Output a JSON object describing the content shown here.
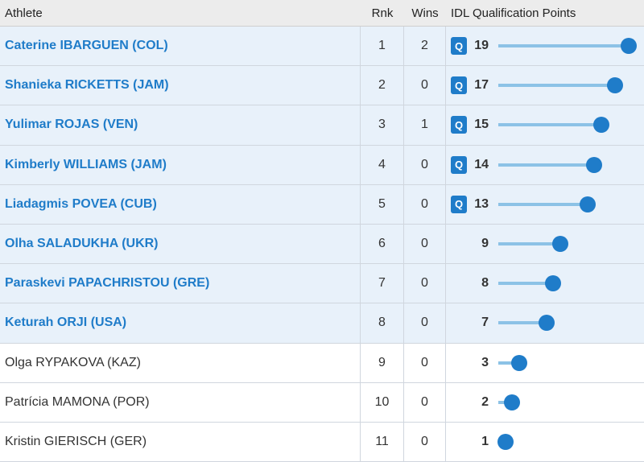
{
  "headers": {
    "athlete": "Athlete",
    "rnk": "Rnk",
    "wins": "Wins",
    "points": "IDL Qualification Points"
  },
  "qualified_badge": "Q",
  "max_points": 19,
  "rows": [
    {
      "athlete": "Caterine IBARGUEN (COL)",
      "rnk": "1",
      "wins": "2",
      "points": "19",
      "qualified": true
    },
    {
      "athlete": "Shanieka RICKETTS (JAM)",
      "rnk": "2",
      "wins": "0",
      "points": "17",
      "qualified": true
    },
    {
      "athlete": "Yulimar ROJAS (VEN)",
      "rnk": "3",
      "wins": "1",
      "points": "15",
      "qualified": true
    },
    {
      "athlete": "Kimberly WILLIAMS (JAM)",
      "rnk": "4",
      "wins": "0",
      "points": "14",
      "qualified": true
    },
    {
      "athlete": "Liadagmis POVEA (CUB)",
      "rnk": "5",
      "wins": "0",
      "points": "13",
      "qualified": true
    },
    {
      "athlete": "Olha SALADUKHA (UKR)",
      "rnk": "6",
      "wins": "0",
      "points": "9",
      "qualified": false
    },
    {
      "athlete": "Paraskevi PAPACHRISTOU (GRE)",
      "rnk": "7",
      "wins": "0",
      "points": "8",
      "qualified": false
    },
    {
      "athlete": "Keturah ORJI (USA)",
      "rnk": "8",
      "wins": "0",
      "points": "7",
      "qualified": false
    },
    {
      "athlete": "Olga RYPAKOVA (KAZ)",
      "rnk": "9",
      "wins": "0",
      "points": "3",
      "qualified": false
    },
    {
      "athlete": "Patrícia MAMONA (POR)",
      "rnk": "10",
      "wins": "0",
      "points": "2",
      "qualified": false
    },
    {
      "athlete": "Kristin GIERISCH (GER)",
      "rnk": "11",
      "wins": "0",
      "points": "1",
      "qualified": false
    }
  ],
  "linked_rows": 8,
  "colors": {
    "accent": "#1f7cc9",
    "bar": "#8cc2e6",
    "highlight_row": "#e8f1fa"
  }
}
